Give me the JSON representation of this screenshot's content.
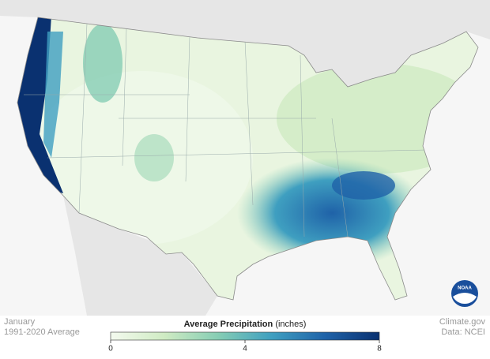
{
  "header": {
    "title": "January",
    "subtitle": "1991-2020 Average"
  },
  "credits": {
    "source": "Climate.gov",
    "data": "Data: NCEI",
    "logo": "NOAA"
  },
  "legend": {
    "title": "Average Precipitation",
    "unit": "(inches)",
    "range": [
      0,
      8
    ],
    "ticks": [
      0,
      4,
      8
    ],
    "colors": [
      "#f4faef",
      "#cfebc3",
      "#86cdb4",
      "#3f9fc0",
      "#1f62a8",
      "#0a3170"
    ]
  }
}
